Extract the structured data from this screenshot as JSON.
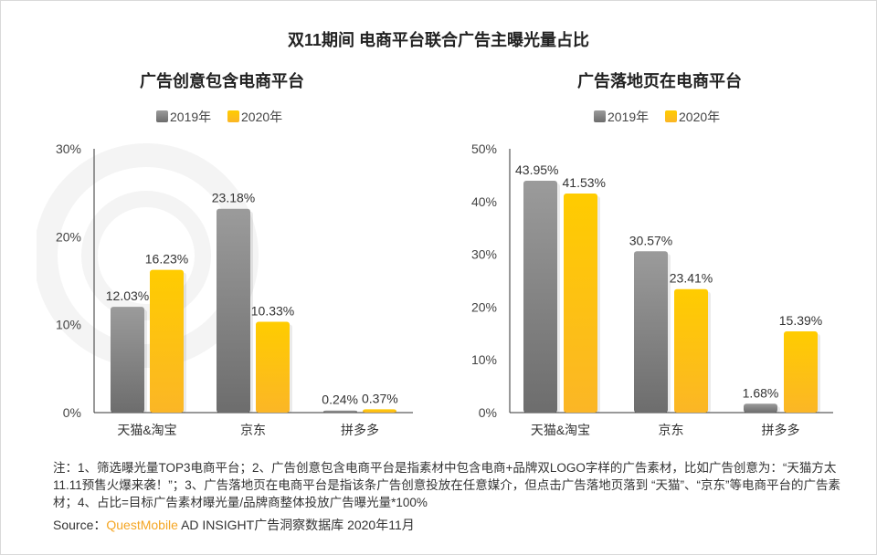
{
  "title": "双11期间 电商平台联合广告主曝光量占比",
  "watermark": "QUESTMOBILE",
  "colors": {
    "y2019": "#7f7f7f",
    "y2020": "#ffc000"
  },
  "chart_data": [
    {
      "type": "bar",
      "title": "广告创意包含电商平台",
      "categories": [
        "天猫&淘宝",
        "京东",
        "拼多多"
      ],
      "series": [
        {
          "name": "2019年",
          "values": [
            12.03,
            23.18,
            0.24
          ],
          "labels": [
            "12.03%",
            "23.18%",
            "0.24%"
          ]
        },
        {
          "name": "2020年",
          "values": [
            16.23,
            10.33,
            0.37
          ],
          "labels": [
            "16.23%",
            "10.33%",
            "0.37%"
          ]
        }
      ],
      "yticks": [
        "0%",
        "10%",
        "20%",
        "30%"
      ],
      "ylim": [
        0,
        30
      ],
      "legend": "top-center"
    },
    {
      "type": "bar",
      "title": "广告落地页在电商平台",
      "categories": [
        "天猫&淘宝",
        "京东",
        "拼多多"
      ],
      "series": [
        {
          "name": "2019年",
          "values": [
            43.95,
            30.57,
            1.68
          ],
          "labels": [
            "43.95%",
            "30.57%",
            "1.68%"
          ]
        },
        {
          "name": "2020年",
          "values": [
            41.53,
            23.41,
            15.39
          ],
          "labels": [
            "41.53%",
            "23.41%",
            "15.39%"
          ]
        }
      ],
      "yticks": [
        "0%",
        "10%",
        "20%",
        "30%",
        "40%",
        "50%"
      ],
      "ylim": [
        0,
        50
      ],
      "legend": "top-center"
    }
  ],
  "notes": "注：1、筛选曝光量TOP3电商平台；2、广告创意包含电商平台是指素材中包含电商+品牌双LOGO字样的广告素材，比如广告创意为：“天猫方太11.11预售火爆来袭！”；3、广告落地页在电商平台是指该条广告创意投放在任意媒介，但点击广告落地页落到 “天猫”、“京东”等电商平台的广告素材；4、占比=目标广告素材曝光量/品牌商整体投放广告曝光量*100%",
  "source": {
    "label": "Source：",
    "brand": "QuestMobile",
    "rest": " AD INSIGHT广告洞察数据库 2020年11月"
  }
}
